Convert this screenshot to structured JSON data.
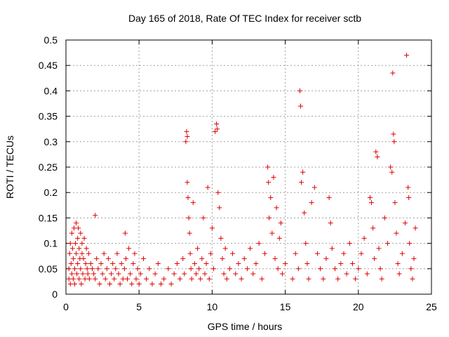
{
  "chart_data": {
    "type": "scatter",
    "title": "Day 165 of 2018, Rate Of TEC Index for receiver sctb",
    "xlabel": "GPS time / hours",
    "ylabel": "ROTI / TECUs",
    "xlim": [
      0,
      25
    ],
    "ylim": [
      0,
      0.5
    ],
    "xticks": [
      0,
      5,
      10,
      15,
      20,
      25
    ],
    "yticks": [
      0,
      0.05,
      0.1,
      0.15,
      0.2,
      0.25,
      0.3,
      0.35,
      0.4,
      0.45,
      0.5
    ],
    "xtick_labels": [
      "0",
      "5",
      "10",
      "15",
      "20",
      "25"
    ],
    "ytick_labels": [
      "0",
      "0.05",
      "0.1",
      "0.15",
      "0.2",
      "0.25",
      "0.3",
      "0.35",
      "0.4",
      "0.45",
      "0.5"
    ],
    "grid": true,
    "marker": "plus",
    "color": "#e00000",
    "series": [
      {
        "name": "ROTI",
        "points": [
          [
            0.2,
            0.03
          ],
          [
            0.2,
            0.05
          ],
          [
            0.25,
            0.08
          ],
          [
            0.3,
            0.02
          ],
          [
            0.3,
            0.1
          ],
          [
            0.35,
            0.06
          ],
          [
            0.4,
            0.04
          ],
          [
            0.4,
            0.12
          ],
          [
            0.45,
            0.09
          ],
          [
            0.5,
            0.03
          ],
          [
            0.5,
            0.07
          ],
          [
            0.55,
            0.13
          ],
          [
            0.6,
            0.02
          ],
          [
            0.6,
            0.05
          ],
          [
            0.65,
            0.1
          ],
          [
            0.7,
            0.08
          ],
          [
            0.7,
            0.14
          ],
          [
            0.75,
            0.04
          ],
          [
            0.8,
            0.11
          ],
          [
            0.8,
            0.06
          ],
          [
            0.85,
            0.13
          ],
          [
            0.9,
            0.03
          ],
          [
            0.9,
            0.09
          ],
          [
            0.95,
            0.07
          ],
          [
            1.0,
            0.12
          ],
          [
            1.0,
            0.05
          ],
          [
            1.05,
            0.02
          ],
          [
            1.1,
            0.08
          ],
          [
            1.1,
            0.1
          ],
          [
            1.15,
            0.04
          ],
          [
            1.2,
            0.07
          ],
          [
            1.25,
            0.11
          ],
          [
            1.3,
            0.03
          ],
          [
            1.35,
            0.06
          ],
          [
            1.4,
            0.09
          ],
          [
            1.45,
            0.05
          ],
          [
            1.5,
            0.04
          ],
          [
            1.55,
            0.08
          ],
          [
            1.6,
            0.03
          ],
          [
            1.7,
            0.06
          ],
          [
            1.8,
            0.05
          ],
          [
            1.9,
            0.04
          ],
          [
            2.0,
            0.155
          ],
          [
            2.0,
            0.03
          ],
          [
            2.1,
            0.07
          ],
          [
            2.2,
            0.05
          ],
          [
            2.3,
            0.02
          ],
          [
            2.4,
            0.06
          ],
          [
            2.5,
            0.04
          ],
          [
            2.6,
            0.08
          ],
          [
            2.7,
            0.03
          ],
          [
            2.8,
            0.05
          ],
          [
            2.9,
            0.07
          ],
          [
            3.0,
            0.02
          ],
          [
            3.1,
            0.04
          ],
          [
            3.2,
            0.06
          ],
          [
            3.3,
            0.03
          ],
          [
            3.4,
            0.05
          ],
          [
            3.5,
            0.08
          ],
          [
            3.6,
            0.04
          ],
          [
            3.7,
            0.02
          ],
          [
            3.8,
            0.06
          ],
          [
            3.9,
            0.03
          ],
          [
            4.0,
            0.05
          ],
          [
            4.05,
            0.12
          ],
          [
            4.1,
            0.07
          ],
          [
            4.2,
            0.03
          ],
          [
            4.3,
            0.09
          ],
          [
            4.4,
            0.04
          ],
          [
            4.5,
            0.02
          ],
          [
            4.6,
            0.06
          ],
          [
            4.7,
            0.08
          ],
          [
            4.8,
            0.03
          ],
          [
            4.9,
            0.05
          ],
          [
            5.0,
            0.02
          ],
          [
            5.1,
            0.04
          ],
          [
            5.3,
            0.07
          ],
          [
            5.5,
            0.03
          ],
          [
            5.7,
            0.05
          ],
          [
            5.9,
            0.02
          ],
          [
            6.1,
            0.04
          ],
          [
            6.3,
            0.06
          ],
          [
            6.5,
            0.02
          ],
          [
            6.7,
            0.03
          ],
          [
            7.0,
            0.05
          ],
          [
            7.2,
            0.02
          ],
          [
            7.4,
            0.04
          ],
          [
            7.6,
            0.06
          ],
          [
            7.8,
            0.03
          ],
          [
            8.0,
            0.07
          ],
          [
            8.1,
            0.04
          ],
          [
            8.2,
            0.3
          ],
          [
            8.25,
            0.32
          ],
          [
            8.3,
            0.31
          ],
          [
            8.3,
            0.22
          ],
          [
            8.35,
            0.19
          ],
          [
            8.4,
            0.15
          ],
          [
            8.45,
            0.12
          ],
          [
            8.5,
            0.08
          ],
          [
            8.55,
            0.05
          ],
          [
            8.6,
            0.03
          ],
          [
            8.7,
            0.18
          ],
          [
            8.8,
            0.06
          ],
          [
            8.9,
            0.04
          ],
          [
            9.0,
            0.09
          ],
          [
            9.1,
            0.05
          ],
          [
            9.2,
            0.03
          ],
          [
            9.3,
            0.07
          ],
          [
            9.4,
            0.15
          ],
          [
            9.5,
            0.04
          ],
          [
            9.6,
            0.06
          ],
          [
            9.7,
            0.21
          ],
          [
            9.8,
            0.03
          ],
          [
            9.9,
            0.08
          ],
          [
            10.0,
            0.13
          ],
          [
            10.1,
            0.05
          ],
          [
            10.2,
            0.32
          ],
          [
            10.3,
            0.335
          ],
          [
            10.35,
            0.325
          ],
          [
            10.4,
            0.2
          ],
          [
            10.5,
            0.17
          ],
          [
            10.6,
            0.11
          ],
          [
            10.7,
            0.07
          ],
          [
            10.8,
            0.04
          ],
          [
            10.9,
            0.09
          ],
          [
            11.0,
            0.03
          ],
          [
            11.2,
            0.05
          ],
          [
            11.4,
            0.08
          ],
          [
            11.6,
            0.04
          ],
          [
            11.8,
            0.06
          ],
          [
            12.0,
            0.03
          ],
          [
            12.2,
            0.07
          ],
          [
            12.4,
            0.05
          ],
          [
            12.6,
            0.09
          ],
          [
            12.8,
            0.04
          ],
          [
            13.0,
            0.06
          ],
          [
            13.2,
            0.1
          ],
          [
            13.4,
            0.03
          ],
          [
            13.6,
            0.08
          ],
          [
            13.8,
            0.25
          ],
          [
            13.85,
            0.22
          ],
          [
            13.9,
            0.15
          ],
          [
            14.0,
            0.19
          ],
          [
            14.1,
            0.12
          ],
          [
            14.2,
            0.23
          ],
          [
            14.3,
            0.07
          ],
          [
            14.4,
            0.17
          ],
          [
            14.5,
            0.05
          ],
          [
            14.6,
            0.11
          ],
          [
            14.7,
            0.14
          ],
          [
            14.8,
            0.04
          ],
          [
            15.0,
            0.06
          ],
          [
            15.5,
            0.03
          ],
          [
            15.7,
            0.08
          ],
          [
            15.9,
            0.05
          ],
          [
            16.0,
            0.4
          ],
          [
            16.05,
            0.37
          ],
          [
            16.1,
            0.22
          ],
          [
            16.2,
            0.24
          ],
          [
            16.3,
            0.16
          ],
          [
            16.4,
            0.1
          ],
          [
            16.5,
            0.06
          ],
          [
            16.6,
            0.03
          ],
          [
            16.8,
            0.18
          ],
          [
            17.0,
            0.21
          ],
          [
            17.2,
            0.08
          ],
          [
            17.4,
            0.05
          ],
          [
            17.6,
            0.03
          ],
          [
            17.8,
            0.07
          ],
          [
            18.0,
            0.19
          ],
          [
            18.1,
            0.14
          ],
          [
            18.2,
            0.09
          ],
          [
            18.4,
            0.05
          ],
          [
            18.6,
            0.03
          ],
          [
            18.8,
            0.06
          ],
          [
            19.0,
            0.08
          ],
          [
            19.2,
            0.04
          ],
          [
            19.4,
            0.1
          ],
          [
            19.6,
            0.06
          ],
          [
            19.8,
            0.03
          ],
          [
            20.0,
            0.05
          ],
          [
            20.2,
            0.08
          ],
          [
            20.4,
            0.11
          ],
          [
            20.6,
            0.04
          ],
          [
            20.8,
            0.19
          ],
          [
            20.9,
            0.18
          ],
          [
            21.0,
            0.13
          ],
          [
            21.1,
            0.07
          ],
          [
            21.2,
            0.28
          ],
          [
            21.3,
            0.27
          ],
          [
            21.4,
            0.09
          ],
          [
            21.5,
            0.05
          ],
          [
            21.6,
            0.03
          ],
          [
            21.8,
            0.15
          ],
          [
            22.0,
            0.1
          ],
          [
            22.2,
            0.25
          ],
          [
            22.3,
            0.24
          ],
          [
            22.35,
            0.435
          ],
          [
            22.4,
            0.315
          ],
          [
            22.45,
            0.3
          ],
          [
            22.5,
            0.18
          ],
          [
            22.6,
            0.12
          ],
          [
            22.7,
            0.06
          ],
          [
            22.8,
            0.04
          ],
          [
            23.0,
            0.08
          ],
          [
            23.2,
            0.14
          ],
          [
            23.3,
            0.47
          ],
          [
            23.4,
            0.21
          ],
          [
            23.45,
            0.19
          ],
          [
            23.5,
            0.1
          ],
          [
            23.6,
            0.05
          ],
          [
            23.7,
            0.03
          ],
          [
            23.8,
            0.07
          ],
          [
            23.9,
            0.13
          ]
        ]
      }
    ]
  }
}
